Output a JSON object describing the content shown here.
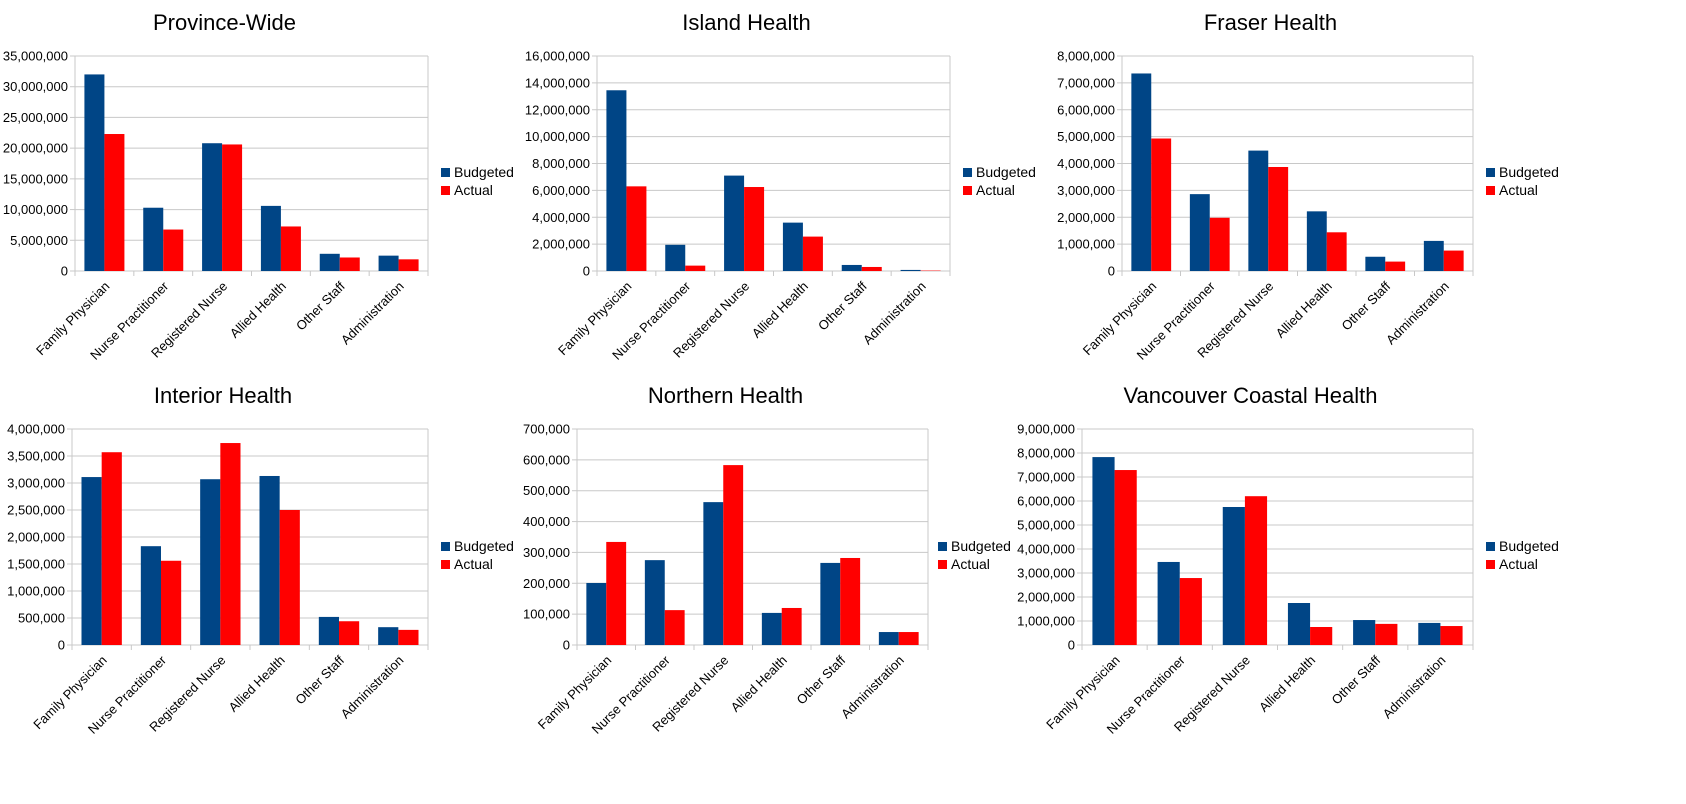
{
  "chart_data": [
    {
      "type": "bar",
      "title": "Province-Wide",
      "categories": [
        "Family Physician",
        "Nurse Practitioner",
        "Registered Nurse",
        "Allied Health",
        "Other Staff",
        "Administration"
      ],
      "series": [
        {
          "name": "Budgeted",
          "color": "#004586",
          "values": [
            32000000,
            10300000,
            20800000,
            10600000,
            2800000,
            2500000
          ]
        },
        {
          "name": "Actual",
          "color": "#ff0000",
          "values": [
            22300000,
            6750000,
            20600000,
            7250000,
            2200000,
            1900000
          ]
        }
      ],
      "ylim": [
        0,
        35000000
      ],
      "ystep": 5000000,
      "yticks": [
        "0",
        "5,000,000",
        "10,000,000",
        "15,000,000",
        "20,000,000",
        "25,000,000",
        "30,000,000",
        "35,000,000"
      ],
      "grid": true,
      "legend": "right"
    },
    {
      "type": "bar",
      "title": "Island Health",
      "categories": [
        "Family Physician",
        "Nurse Practitioner",
        "Registered Nurse",
        "Allied Health",
        "Other Staff",
        "Administration"
      ],
      "series": [
        {
          "name": "Budgeted",
          "color": "#004586",
          "values": [
            13450000,
            1950000,
            7100000,
            3600000,
            450000,
            80000
          ]
        },
        {
          "name": "Actual",
          "color": "#ff0000",
          "values": [
            6300000,
            400000,
            6250000,
            2560000,
            300000,
            30000
          ]
        }
      ],
      "ylim": [
        0,
        16000000
      ],
      "ystep": 2000000,
      "yticks": [
        "0",
        "2,000,000",
        "4,000,000",
        "6,000,000",
        "8,000,000",
        "10,000,000",
        "12,000,000",
        "14,000,000",
        "16,000,000"
      ],
      "grid": true,
      "legend": "right"
    },
    {
      "type": "bar",
      "title": "Fraser Health",
      "categories": [
        "Family Physician",
        "Nurse Practitioner",
        "Registered Nurse",
        "Allied Health",
        "Other Staff",
        "Administration"
      ],
      "series": [
        {
          "name": "Budgeted",
          "color": "#004586",
          "values": [
            7350000,
            2860000,
            4480000,
            2220000,
            530000,
            1120000
          ]
        },
        {
          "name": "Actual",
          "color": "#ff0000",
          "values": [
            4930000,
            1980000,
            3870000,
            1440000,
            350000,
            760000
          ]
        }
      ],
      "ylim": [
        0,
        8000000
      ],
      "ystep": 1000000,
      "yticks": [
        "0",
        "1,000,000",
        "2,000,000",
        "3,000,000",
        "4,000,000",
        "5,000,000",
        "6,000,000",
        "7,000,000",
        "8,000,000"
      ],
      "grid": true,
      "legend": "right"
    },
    {
      "type": "bar",
      "title": "Interior Health",
      "categories": [
        "Family Physician",
        "Nurse Practitioner",
        "Registered Nurse",
        "Allied Health",
        "Other Staff",
        "Administration"
      ],
      "series": [
        {
          "name": "Budgeted",
          "color": "#004586",
          "values": [
            3110000,
            1830000,
            3070000,
            3130000,
            520000,
            330000
          ]
        },
        {
          "name": "Actual",
          "color": "#ff0000",
          "values": [
            3570000,
            1560000,
            3740000,
            2500000,
            440000,
            280000
          ]
        }
      ],
      "ylim": [
        0,
        4000000
      ],
      "ystep": 500000,
      "yticks": [
        "0",
        "500,000",
        "1,000,000",
        "1,500,000",
        "2,000,000",
        "2,500,000",
        "3,000,000",
        "3,500,000",
        "4,000,000"
      ],
      "grid": true,
      "legend": "right"
    },
    {
      "type": "bar",
      "title": "Northern Health",
      "categories": [
        "Family Physician",
        "Nurse Practitioner",
        "Registered Nurse",
        "Allied Health",
        "Other Staff",
        "Administration"
      ],
      "series": [
        {
          "name": "Budgeted",
          "color": "#004586",
          "values": [
            201000,
            275000,
            463000,
            104000,
            266000,
            42000
          ]
        },
        {
          "name": "Actual",
          "color": "#ff0000",
          "values": [
            334000,
            113000,
            583000,
            120000,
            282000,
            42000
          ]
        }
      ],
      "ylim": [
        0,
        700000
      ],
      "ystep": 100000,
      "yticks": [
        "0",
        "100,000",
        "200,000",
        "300,000",
        "400,000",
        "500,000",
        "600,000",
        "700,000"
      ],
      "grid": true,
      "legend": "right"
    },
    {
      "type": "bar",
      "title": "Vancouver Coastal Health",
      "categories": [
        "Family Physician",
        "Nurse Practitioner",
        "Registered Nurse",
        "Allied Health",
        "Other Staff",
        "Administration"
      ],
      "series": [
        {
          "name": "Budgeted",
          "color": "#004586",
          "values": [
            7830000,
            3460000,
            5750000,
            1750000,
            1040000,
            920000
          ]
        },
        {
          "name": "Actual",
          "color": "#ff0000",
          "values": [
            7290000,
            2790000,
            6200000,
            750000,
            880000,
            790000
          ]
        }
      ],
      "ylim": [
        0,
        9000000
      ],
      "ystep": 1000000,
      "yticks": [
        "0",
        "1,000,000",
        "2,000,000",
        "3,000,000",
        "4,000,000",
        "5,000,000",
        "6,000,000",
        "7,000,000",
        "8,000,000",
        "9,000,000"
      ],
      "grid": true,
      "legend": "right"
    }
  ]
}
